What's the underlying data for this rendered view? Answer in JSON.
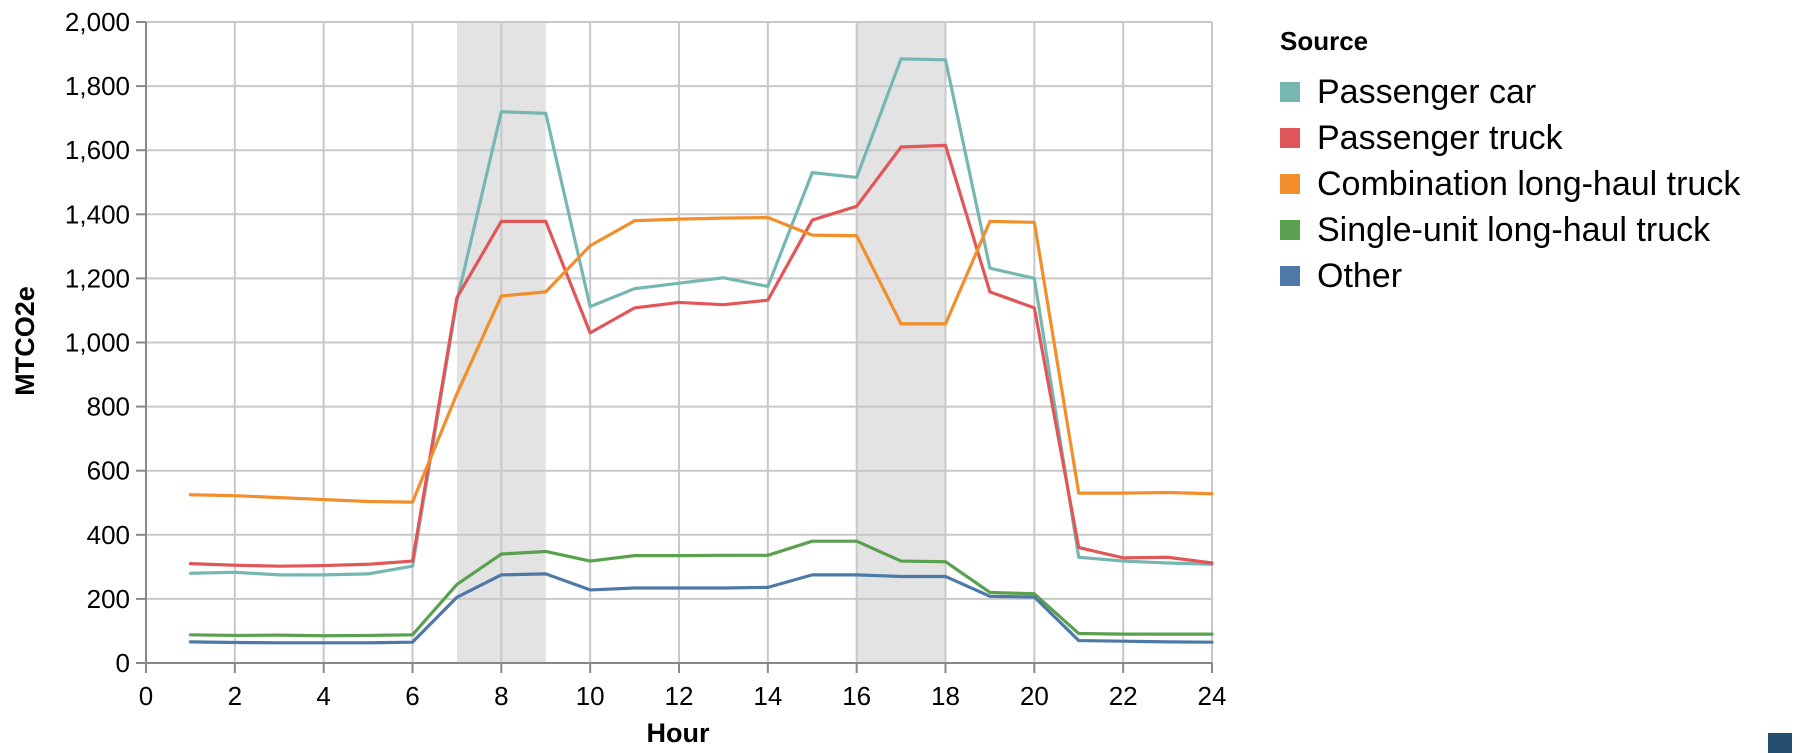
{
  "chart_data": {
    "type": "line",
    "xlabel": "Hour",
    "ylabel": "MTCO2e",
    "xlim": [
      0,
      24
    ],
    "ylim": [
      0,
      2000
    ],
    "x_ticks": [
      0,
      2,
      4,
      6,
      8,
      10,
      12,
      14,
      16,
      18,
      20,
      22,
      24
    ],
    "y_ticks": [
      0,
      200,
      400,
      600,
      800,
      1000,
      1200,
      1400,
      1600,
      1800,
      2000
    ],
    "x_tick_labels": [
      "0",
      "2",
      "4",
      "6",
      "8",
      "10",
      "12",
      "14",
      "16",
      "18",
      "20",
      "22",
      "24"
    ],
    "y_tick_labels": [
      "0",
      "200",
      "400",
      "600",
      "800",
      "1,000",
      "1,200",
      "1,400",
      "1,600",
      "1,800",
      "2,000"
    ],
    "grid": true,
    "shaded_ranges": [
      [
        7,
        9
      ],
      [
        16,
        18
      ]
    ],
    "shade_color": "#e3e3e3",
    "legend_title": "Source",
    "legend_position": "right",
    "x": [
      1,
      2,
      3,
      4,
      5,
      6,
      7,
      8,
      9,
      10,
      11,
      12,
      13,
      14,
      15,
      16,
      17,
      18,
      19,
      20,
      21,
      22,
      23,
      24
    ],
    "series": [
      {
        "name": "Passenger car",
        "color": "#76b7b2",
        "values": [
          280,
          283,
          275,
          275,
          278,
          302,
          1130,
          1720,
          1715,
          1112,
          1168,
          1185,
          1202,
          1175,
          1530,
          1515,
          1885,
          1882,
          1232,
          1200,
          330,
          318,
          312,
          308
        ]
      },
      {
        "name": "Passenger truck",
        "color": "#e15759",
        "values": [
          310,
          305,
          302,
          304,
          308,
          318,
          1140,
          1378,
          1378,
          1030,
          1108,
          1125,
          1118,
          1132,
          1382,
          1425,
          1610,
          1615,
          1158,
          1108,
          360,
          328,
          330,
          312
        ]
      },
      {
        "name": "Combination long-haul truck",
        "color": "#f28e2b",
        "values": [
          525,
          522,
          516,
          510,
          504,
          502,
          840,
          1145,
          1158,
          1302,
          1380,
          1385,
          1388,
          1390,
          1335,
          1333,
          1058,
          1058,
          1378,
          1375,
          530,
          530,
          532,
          528
        ]
      },
      {
        "name": "Single-unit long-haul truck",
        "color": "#59a14f",
        "values": [
          88,
          86,
          87,
          85,
          86,
          88,
          245,
          340,
          348,
          318,
          335,
          335,
          336,
          336,
          380,
          380,
          318,
          316,
          220,
          216,
          92,
          90,
          90,
          90
        ]
      },
      {
        "name": "Other",
        "color": "#4e79a7",
        "values": [
          66,
          64,
          63,
          63,
          63,
          65,
          205,
          275,
          278,
          228,
          234,
          234,
          234,
          236,
          275,
          275,
          270,
          270,
          208,
          206,
          70,
          68,
          66,
          65
        ]
      }
    ]
  }
}
